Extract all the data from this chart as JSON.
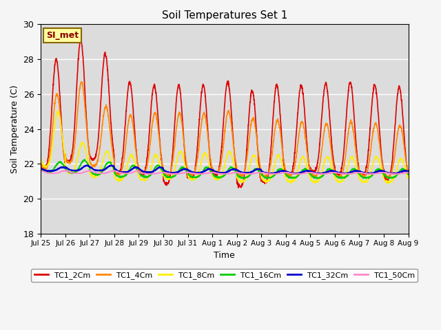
{
  "title": "Soil Temperatures Set 1",
  "xlabel": "Time",
  "ylabel": "Soil Temperature (C)",
  "ylim": [
    18,
    30
  ],
  "plot_bg_color": "#dcdcdc",
  "fig_bg_color": "#f5f5f5",
  "annotation_text": "SI_met",
  "annotation_bg": "#ffffa0",
  "annotation_border": "#886600",
  "annotation_text_color": "#880000",
  "series_order": [
    "TC1_2Cm",
    "TC1_4Cm",
    "TC1_8Cm",
    "TC1_16Cm",
    "TC1_32Cm",
    "TC1_50Cm"
  ],
  "series": {
    "TC1_2Cm": {
      "color": "#dd0000",
      "lw": 1.2
    },
    "TC1_4Cm": {
      "color": "#ff8800",
      "lw": 1.2
    },
    "TC1_8Cm": {
      "color": "#ffee00",
      "lw": 1.2
    },
    "TC1_16Cm": {
      "color": "#00cc00",
      "lw": 1.2
    },
    "TC1_32Cm": {
      "color": "#0000cc",
      "lw": 1.5
    },
    "TC1_50Cm": {
      "color": "#ff88cc",
      "lw": 1.2
    }
  },
  "xtick_labels": [
    "Jul 25",
    "Jul 26",
    "Jul 27",
    "Jul 28",
    "Jul 29",
    "Jul 30",
    "Jul 31",
    "Aug 1",
    "Aug 2",
    "Aug 3",
    "Aug 4",
    "Aug 5",
    "Aug 6",
    "Aug 7",
    "Aug 8",
    "Aug 9"
  ],
  "grid_color": "#ffffff",
  "n_days": 15,
  "pts_per_day": 144
}
